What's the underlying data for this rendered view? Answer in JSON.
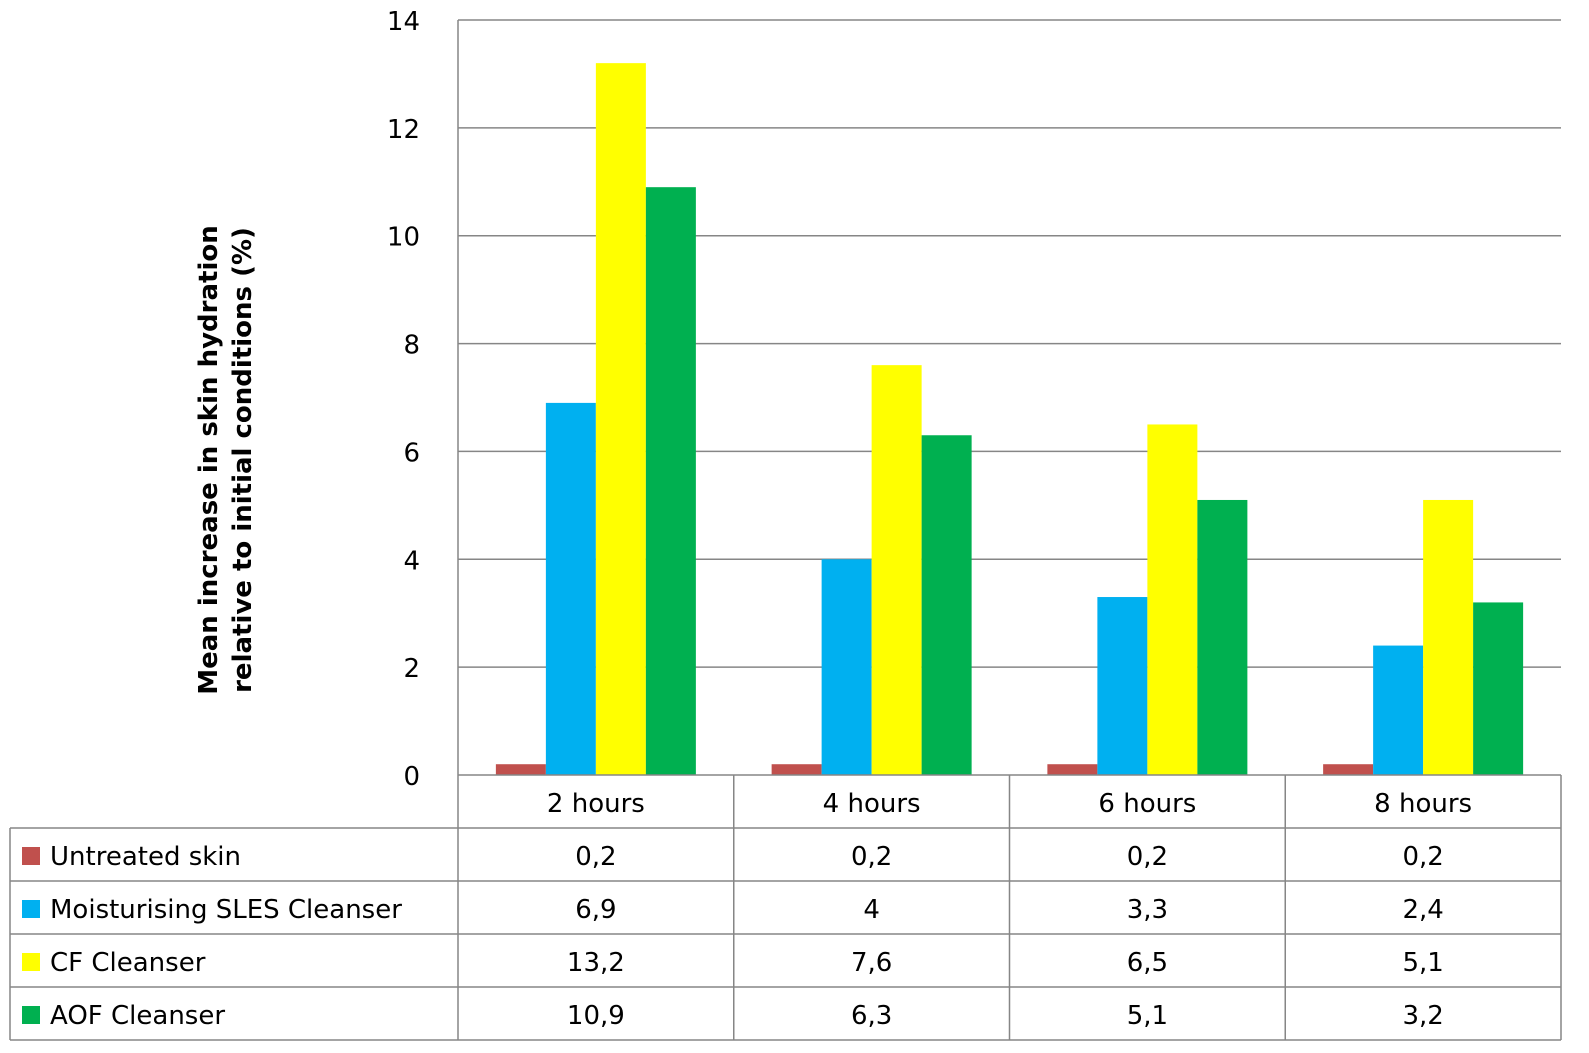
{
  "chart_data": {
    "type": "bar",
    "categories": [
      "2 hours",
      "4 hours",
      "6 hours",
      "8 hours"
    ],
    "series": [
      {
        "name": "Untreated skin",
        "values": [
          0.2,
          0.2,
          0.2,
          0.2
        ],
        "labels": [
          "0,2",
          "0,2",
          "0,2",
          "0,2"
        ],
        "color": "#C0504D"
      },
      {
        "name": "Moisturising SLES Cleanser",
        "values": [
          6.9,
          4,
          3.3,
          2.4
        ],
        "labels": [
          "6,9",
          "4",
          "3,3",
          "2,4"
        ],
        "color": "#00B0F0"
      },
      {
        "name": "CF Cleanser",
        "values": [
          13.2,
          7.6,
          6.5,
          5.1
        ],
        "labels": [
          "13,2",
          "7,6",
          "6,5",
          "5,1"
        ],
        "color": "#FFFF00"
      },
      {
        "name": "AOF Cleanser",
        "values": [
          10.9,
          6.3,
          5.1,
          3.2
        ],
        "labels": [
          "10,9",
          "6,3",
          "5,1",
          "3,2"
        ],
        "color": "#00B050"
      }
    ],
    "ylabel_lines": [
      "Mean increase in skin hydration",
      "relative to initial conditions (%)"
    ],
    "ylim": [
      0,
      14
    ],
    "yticks": [
      "0",
      "2",
      "4",
      "6",
      "8",
      "10",
      "12",
      "14"
    ],
    "grid": true,
    "legend": "data table below chart"
  }
}
